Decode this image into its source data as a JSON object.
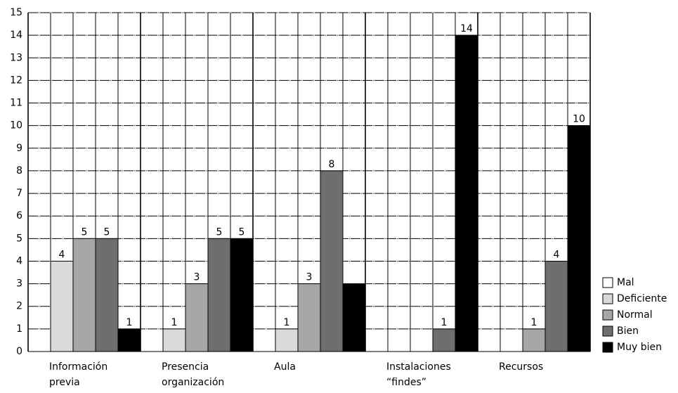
{
  "chart_data": {
    "type": "bar",
    "categories": [
      [
        "Información",
        "previa"
      ],
      [
        "Presencia",
        "organización"
      ],
      [
        "Aula"
      ],
      [
        "Instalaciones",
        "“findes”"
      ],
      [
        "Recursos"
      ]
    ],
    "series": [
      {
        "name": "Mal",
        "color": "#ffffff",
        "values": [
          0,
          0,
          0,
          0,
          0
        ],
        "value_labels": [
          null,
          null,
          null,
          null,
          null
        ]
      },
      {
        "name": "Deficiente",
        "color": "#d9d9d9",
        "values": [
          4,
          1,
          1,
          0,
          0
        ],
        "value_labels": [
          "4",
          "1",
          "1",
          null,
          null
        ]
      },
      {
        "name": "Normal",
        "color": "#a6a6a6",
        "values": [
          5,
          3,
          3,
          0,
          1
        ],
        "value_labels": [
          "5",
          "3",
          "3",
          null,
          "1"
        ]
      },
      {
        "name": "Bien",
        "color": "#6e6e6e",
        "values": [
          5,
          5,
          8,
          1,
          4
        ],
        "value_labels": [
          "5",
          "5",
          "8",
          "1",
          "4"
        ]
      },
      {
        "name": "Muy bien",
        "color": "#000000",
        "values": [
          1,
          5,
          3,
          14,
          10
        ],
        "value_labels": [
          "1",
          "5",
          null,
          "14",
          "10"
        ]
      }
    ],
    "ylim": [
      0,
      15
    ],
    "yticks": [
      0,
      1,
      2,
      3,
      4,
      5,
      6,
      7,
      8,
      9,
      10,
      11,
      12,
      13,
      14,
      15
    ],
    "grid": true,
    "legend": "right"
  }
}
